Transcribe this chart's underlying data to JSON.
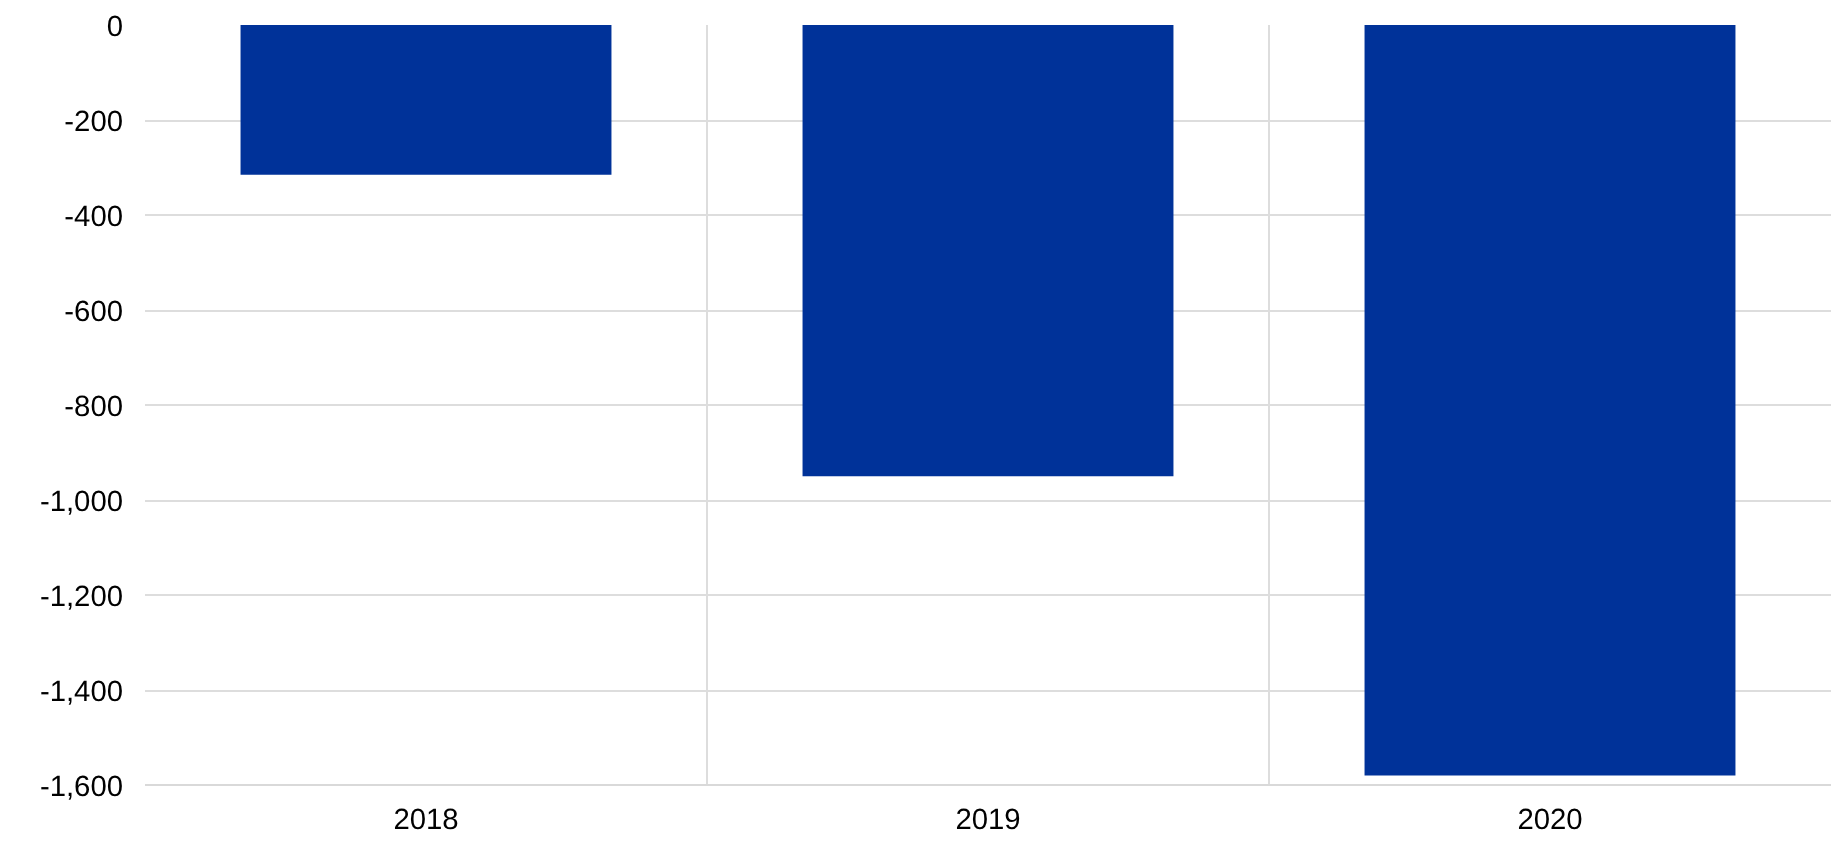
{
  "chart_data": {
    "type": "bar",
    "categories": [
      "2018",
      "2019",
      "2020"
    ],
    "values": [
      -315,
      -950,
      -1580
    ],
    "color": "#003299",
    "ylim": [
      -1600,
      0
    ],
    "yticks": [
      0,
      -200,
      -400,
      -600,
      -800,
      {
        "value": -1000,
        "label": "-1,000"
      },
      {
        "value": -1200,
        "label": "-1,200"
      },
      {
        "value": -1400,
        "label": "-1,400"
      },
      {
        "value": -1600,
        "label": "-1,600"
      }
    ],
    "grid": true
  }
}
